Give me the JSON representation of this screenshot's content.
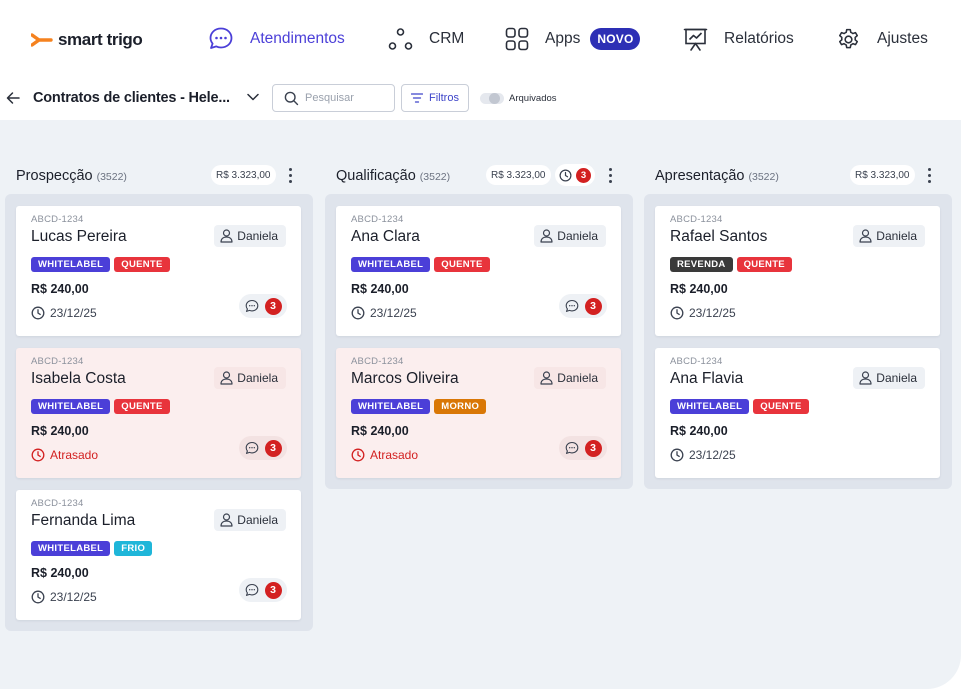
{
  "brand": {
    "name": "smart trigo",
    "accent": "#f5821f"
  },
  "nav": {
    "items": [
      {
        "label": "Atendimentos",
        "icon": "chat-bubble-icon",
        "active": true
      },
      {
        "label": "CRM",
        "icon": "crm-nodes-icon",
        "active": false
      },
      {
        "label": "Apps",
        "icon": "apps-grid-icon",
        "active": false,
        "badge": "NOVO"
      },
      {
        "label": "Relatórios",
        "icon": "report-chart-icon",
        "active": false
      },
      {
        "label": "Ajustes",
        "icon": "gear-icon",
        "active": false
      }
    ]
  },
  "toolbar": {
    "title": "Contratos de clientes - Hele...",
    "search_placeholder": "Pesquisar",
    "filter_label": "Filtros",
    "archived_label": "Arquivados",
    "archived_on": false
  },
  "colors": {
    "primary": "#4b3fd8",
    "whitelabel": "#4b3fd8",
    "quente": "#e8343c",
    "morno": "#d97706",
    "frio": "#1fb6d9",
    "revenda": "#3a3a3a",
    "alert_red": "#d32121"
  },
  "columns": [
    {
      "title": "Prospecção",
      "count": "(3522)",
      "total": "R$ 3.323,00",
      "alert_count": null,
      "cards": [
        {
          "code": "ABCD-1234",
          "name": "Lucas Pereira",
          "owner": "Daniela",
          "tags": [
            {
              "label": "WHITELABEL",
              "kind": "whitelabel"
            },
            {
              "label": "QUENTE",
              "kind": "quente"
            }
          ],
          "value": "R$ 240,00",
          "date": "23/12/25",
          "late": false,
          "comments": "3"
        },
        {
          "code": "ABCD-1234",
          "name": "Isabela Costa",
          "owner": "Daniela",
          "tags": [
            {
              "label": "WHITELABEL",
              "kind": "whitelabel"
            },
            {
              "label": "QUENTE",
              "kind": "quente"
            }
          ],
          "value": "R$ 240,00",
          "date": "Atrasado",
          "late": true,
          "comments": "3"
        },
        {
          "code": "ABCD-1234",
          "name": "Fernanda Lima",
          "owner": "Daniela",
          "tags": [
            {
              "label": "WHITELABEL",
              "kind": "whitelabel"
            },
            {
              "label": "FRIO",
              "kind": "frio"
            }
          ],
          "value": "R$ 240,00",
          "date": "23/12/25",
          "late": false,
          "comments": "3"
        }
      ]
    },
    {
      "title": "Qualificação",
      "count": "(3522)",
      "total": "R$ 3.323,00",
      "alert_count": "3",
      "cards": [
        {
          "code": "ABCD-1234",
          "name": "Ana Clara",
          "owner": "Daniela",
          "tags": [
            {
              "label": "WHITELABEL",
              "kind": "whitelabel"
            },
            {
              "label": "QUENTE",
              "kind": "quente"
            }
          ],
          "value": "R$ 240,00",
          "date": "23/12/25",
          "late": false,
          "comments": "3"
        },
        {
          "code": "ABCD-1234",
          "name": "Marcos Oliveira",
          "owner": "Daniela",
          "tags": [
            {
              "label": "WHITELABEL",
              "kind": "whitelabel"
            },
            {
              "label": "MORNO",
              "kind": "morno"
            }
          ],
          "value": "R$ 240,00",
          "date": "Atrasado",
          "late": true,
          "comments": "3"
        }
      ]
    },
    {
      "title": "Apresentação",
      "count": "(3522)",
      "total": "R$ 3.323,00",
      "alert_count": null,
      "cards": [
        {
          "code": "ABCD-1234",
          "name": "Rafael Santos",
          "owner": "Daniela",
          "tags": [
            {
              "label": "REVENDA",
              "kind": "revenda"
            },
            {
              "label": "QUENTE",
              "kind": "quente"
            }
          ],
          "value": "R$ 240,00",
          "date": "23/12/25",
          "late": false,
          "comments": null
        },
        {
          "code": "ABCD-1234",
          "name": "Ana Flavia",
          "owner": "Daniela",
          "tags": [
            {
              "label": "WHITELABEL",
              "kind": "whitelabel"
            },
            {
              "label": "QUENTE",
              "kind": "quente"
            }
          ],
          "value": "R$ 240,00",
          "date": "23/12/25",
          "late": false,
          "comments": null
        }
      ]
    }
  ]
}
